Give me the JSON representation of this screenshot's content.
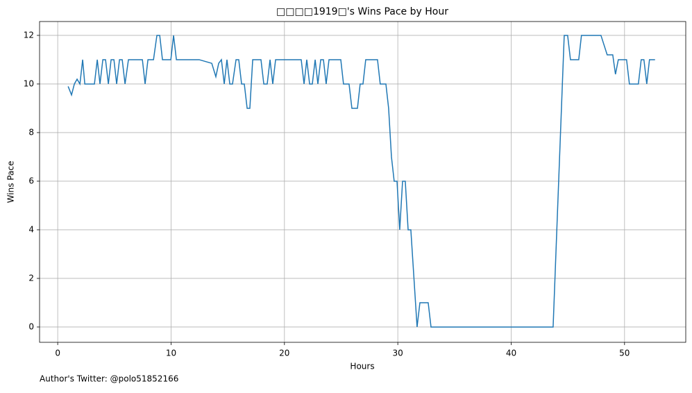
{
  "chart_data": {
    "type": "line",
    "title": "□□□□1919□'s Wins Pace by Hour",
    "xlabel": "Hours",
    "ylabel": "Wins Pace",
    "footer": "Author's Twitter: @polo51852166",
    "color": "#1f77b4",
    "x": [
      0.92,
      1.22,
      1.47,
      1.71,
      1.96,
      2.2,
      2.39,
      3.24,
      3.49,
      3.73,
      3.98,
      4.22,
      4.47,
      4.71,
      4.96,
      5.2,
      5.45,
      5.69,
      5.94,
      6.24,
      7.47,
      7.71,
      7.96,
      8.45,
      8.75,
      9.0,
      9.24,
      9.98,
      10.22,
      10.47,
      12.48,
      13.59,
      13.95,
      14.2,
      14.44,
      14.69,
      14.93,
      15.18,
      15.42,
      15.73,
      15.97,
      16.22,
      16.46,
      16.71,
      16.95,
      17.2,
      17.93,
      18.18,
      18.48,
      18.73,
      18.97,
      19.22,
      21.48,
      21.73,
      21.97,
      22.22,
      22.46,
      22.71,
      22.95,
      23.2,
      23.44,
      23.68,
      23.93,
      24.97,
      25.21,
      25.7,
      25.95,
      26.44,
      26.68,
      26.93,
      27.17,
      28.21,
      28.45,
      28.95,
      29.19,
      29.44,
      29.68,
      29.93,
      30.17,
      30.42,
      30.66,
      30.91,
      31.15,
      31.7,
      31.95,
      32.68,
      32.93,
      43.7,
      44.68,
      44.98,
      45.23,
      45.96,
      46.2,
      47.92,
      48.47,
      48.96,
      49.2,
      49.45,
      50.18,
      50.43,
      51.22,
      51.47,
      51.71,
      51.96,
      52.2,
      52.69
    ],
    "values": [
      9.9,
      9.55,
      10,
      10.2,
      10,
      11,
      10,
      10,
      11,
      10,
      11,
      11,
      10,
      11,
      11,
      10,
      11,
      11,
      10,
      11,
      11,
      10,
      11,
      11,
      12,
      12,
      11,
      11,
      12,
      11,
      11,
      10.85,
      10.3,
      10.85,
      11,
      10,
      11,
      10,
      10,
      11,
      11,
      10,
      10,
      9,
      9,
      11,
      11,
      10,
      10,
      11,
      10,
      11,
      11,
      10,
      11,
      10,
      10,
      11,
      10,
      11,
      11,
      10,
      11,
      11,
      10,
      10,
      9,
      9,
      10,
      10,
      11,
      11,
      10,
      10,
      9,
      7,
      6,
      6,
      4,
      6,
      6,
      4,
      4,
      0,
      1,
      1,
      0,
      0,
      12,
      12,
      11,
      11,
      12,
      12,
      11.2,
      11.2,
      10.4,
      11,
      11,
      10,
      10,
      11,
      11,
      10,
      11,
      11
    ],
    "xlim": [
      -1.6,
      55.4
    ],
    "ylim": [
      -0.63,
      12.57
    ],
    "xticks": [
      0,
      10,
      20,
      30,
      40,
      50
    ],
    "yticks": [
      0,
      2,
      4,
      6,
      8,
      10,
      12
    ],
    "grid": true
  }
}
